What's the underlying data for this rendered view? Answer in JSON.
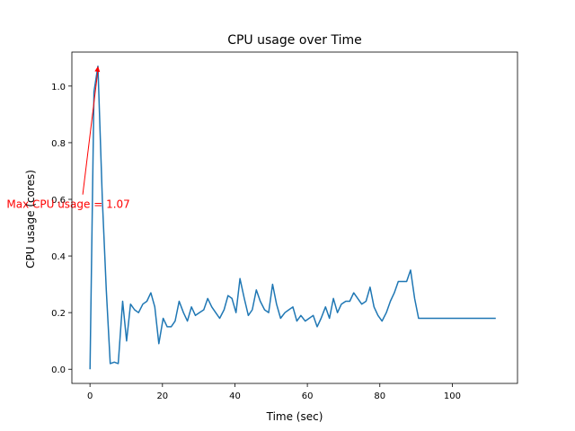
{
  "chart_data": {
    "type": "line",
    "title": "CPU usage over Time",
    "xlabel": "Time (sec)",
    "ylabel": "CPU usage (cores)",
    "xlim": [
      -5,
      118
    ],
    "ylim": [
      -0.05,
      1.12
    ],
    "grid": false,
    "x_ticks": [
      0,
      20,
      40,
      60,
      80,
      100
    ],
    "y_ticks": [
      0.0,
      0.2,
      0.4,
      0.6,
      0.8,
      1.0
    ],
    "y_tick_labels": [
      "0.0",
      "0.2",
      "0.4",
      "0.6",
      "0.8",
      "1.0"
    ],
    "series": [
      {
        "color": "#1f77b4",
        "x": [
          0,
          1.1,
          2.2,
          3.4,
          4.5,
          5.6,
          6.7,
          7.8,
          9,
          10.1,
          11.2,
          12.3,
          13.4,
          14.6,
          15.7,
          16.8,
          17.9,
          19,
          20.2,
          21.3,
          22.4,
          23.5,
          24.6,
          25.8,
          26.9,
          28,
          29.1,
          30.2,
          31.4,
          32.5,
          33.6,
          34.7,
          35.8,
          37,
          38.1,
          39.2,
          40.3,
          41.4,
          42.6,
          43.7,
          44.8,
          45.9,
          47,
          48.2,
          49.3,
          50.4,
          51.5,
          52.6,
          53.8,
          54.9,
          56,
          57.1,
          58.2,
          59.4,
          60.5,
          61.6,
          62.7,
          63.8,
          65,
          66.1,
          67.2,
          68.3,
          69.4,
          70.6,
          71.7,
          72.8,
          73.9,
          75,
          76.2,
          77.3,
          78.4,
          79.5,
          80.6,
          81.8,
          82.9,
          84,
          85.1,
          86.2,
          87.4,
          88.5,
          89.6,
          90.7,
          91.8,
          93,
          94.1,
          95.2,
          96.3,
          97.4,
          98.6,
          99.7,
          100.8,
          101.9,
          103,
          104.2,
          105.3,
          106.4,
          107.5,
          108.6,
          109.8,
          110.9,
          112
        ],
        "y": [
          0.0,
          0.98,
          1.07,
          0.6,
          0.28,
          0.02,
          0.025,
          0.02,
          0.24,
          0.1,
          0.23,
          0.21,
          0.2,
          0.23,
          0.24,
          0.27,
          0.22,
          0.09,
          0.18,
          0.15,
          0.15,
          0.17,
          0.24,
          0.2,
          0.17,
          0.22,
          0.19,
          0.2,
          0.21,
          0.25,
          0.22,
          0.2,
          0.18,
          0.21,
          0.26,
          0.25,
          0.2,
          0.32,
          0.25,
          0.19,
          0.21,
          0.28,
          0.24,
          0.21,
          0.2,
          0.3,
          0.23,
          0.18,
          0.2,
          0.21,
          0.22,
          0.17,
          0.19,
          0.17,
          0.18,
          0.19,
          0.15,
          0.18,
          0.22,
          0.18,
          0.25,
          0.2,
          0.23,
          0.24,
          0.24,
          0.27,
          0.25,
          0.23,
          0.24,
          0.29,
          0.22,
          0.19,
          0.17,
          0.2,
          0.24,
          0.27,
          0.31,
          0.31,
          0.31,
          0.35,
          0.25,
          0.18,
          0.18,
          0.18,
          0.18,
          0.18,
          0.18,
          0.18,
          0.18,
          0.18,
          0.18,
          0.18,
          0.18,
          0.18,
          0.18,
          0.18,
          0.18,
          0.18,
          0.18,
          0.18,
          0.18
        ]
      }
    ],
    "annotation": {
      "text": "Max CPU usage = 1.07",
      "color": "#ff0000",
      "point": [
        2.2,
        1.07
      ],
      "text_anchor_data": [
        -2,
        0.62
      ]
    }
  }
}
